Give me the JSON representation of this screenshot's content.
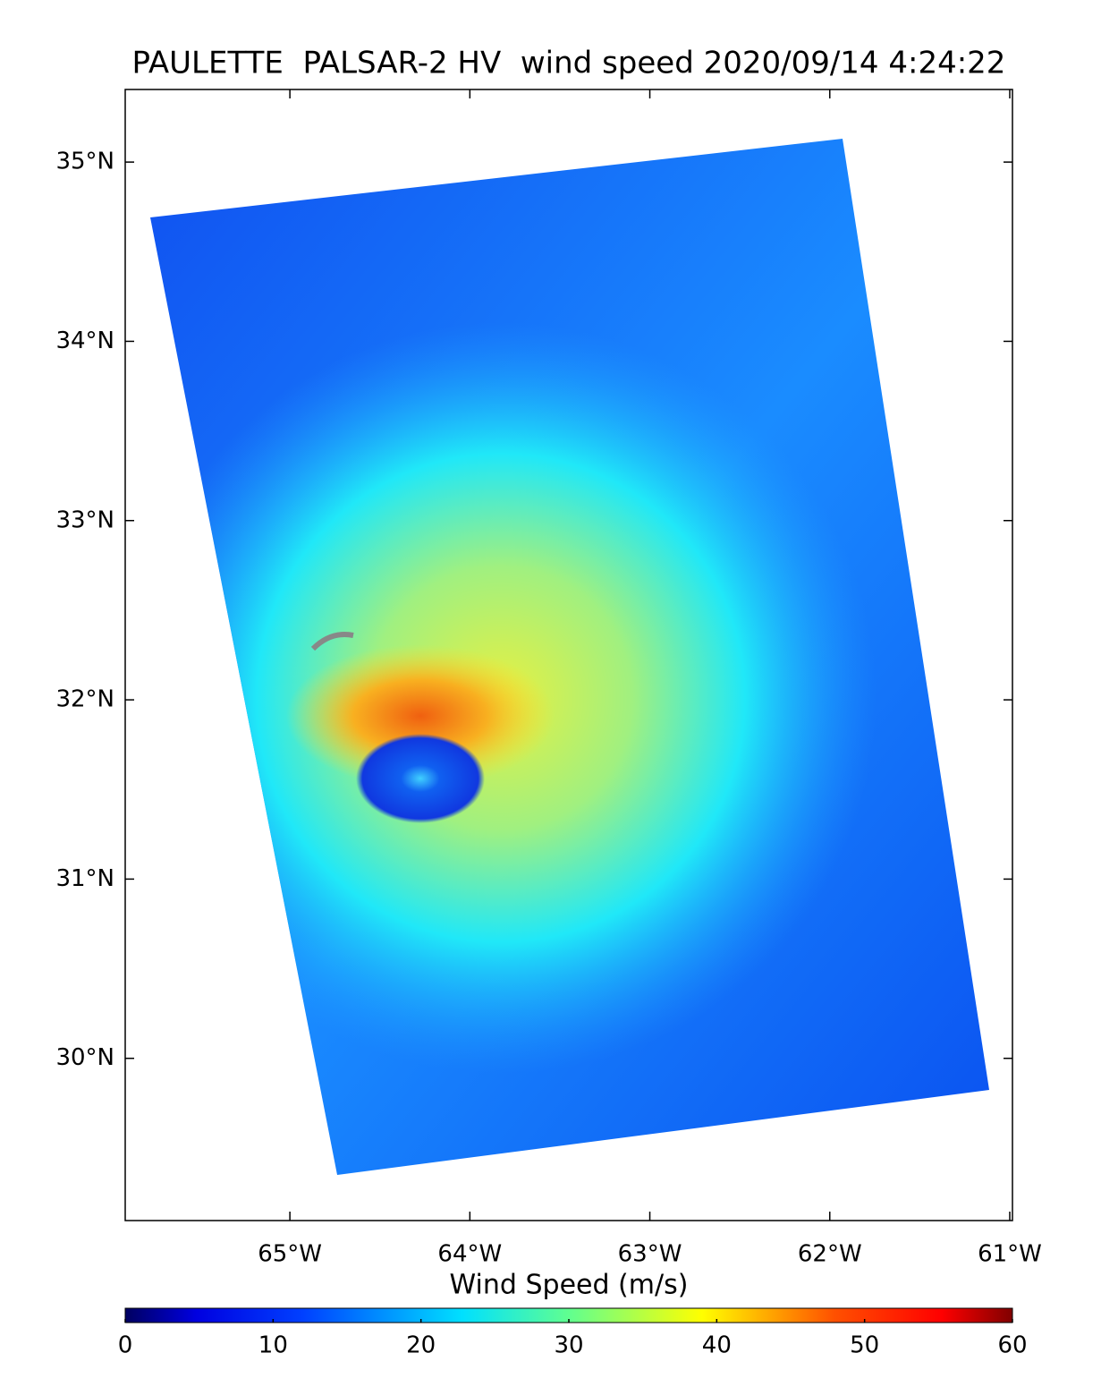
{
  "title": "PAULETTE  PALSAR-2 HV  wind speed 2020/09/14 4:24:22",
  "map": {
    "xlim": [
      -65.915,
      -60.985
    ],
    "ylim": [
      29.095,
      35.405
    ],
    "xticks": [
      {
        "value": -65,
        "label": "65°W"
      },
      {
        "value": -64,
        "label": "64°W"
      },
      {
        "value": -63,
        "label": "63°W"
      },
      {
        "value": -62,
        "label": "62°W"
      },
      {
        "value": -61,
        "label": "61°W"
      }
    ],
    "yticks": [
      {
        "value": 30,
        "label": "30°N"
      },
      {
        "value": 31,
        "label": "31°N"
      },
      {
        "value": 32,
        "label": "32°N"
      },
      {
        "value": 33,
        "label": "33°N"
      },
      {
        "value": 34,
        "label": "34°N"
      },
      {
        "value": 35,
        "label": "35°N"
      }
    ]
  },
  "colorbar": {
    "label": "Wind Speed (m/s)",
    "lim": [
      0,
      60
    ],
    "ticks": [
      0,
      10,
      20,
      30,
      40,
      50,
      60
    ]
  }
}
